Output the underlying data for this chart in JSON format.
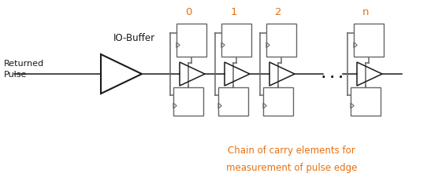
{
  "bg_color": "#ffffff",
  "text_color": "#000000",
  "orange_color": "#E87010",
  "gray_color": "#666666",
  "black_color": "#1a1a1a",
  "returned_pulse_text": "Returned\nPulse",
  "io_buffer_text": "IO-Buffer",
  "chain_text_line1": "Chain of carry elements for",
  "chain_text_line2": "measurement of pulse edge",
  "labels": [
    "0",
    "1",
    "2",
    "n"
  ],
  "figsize": [
    5.47,
    2.39
  ],
  "dpi": 100
}
